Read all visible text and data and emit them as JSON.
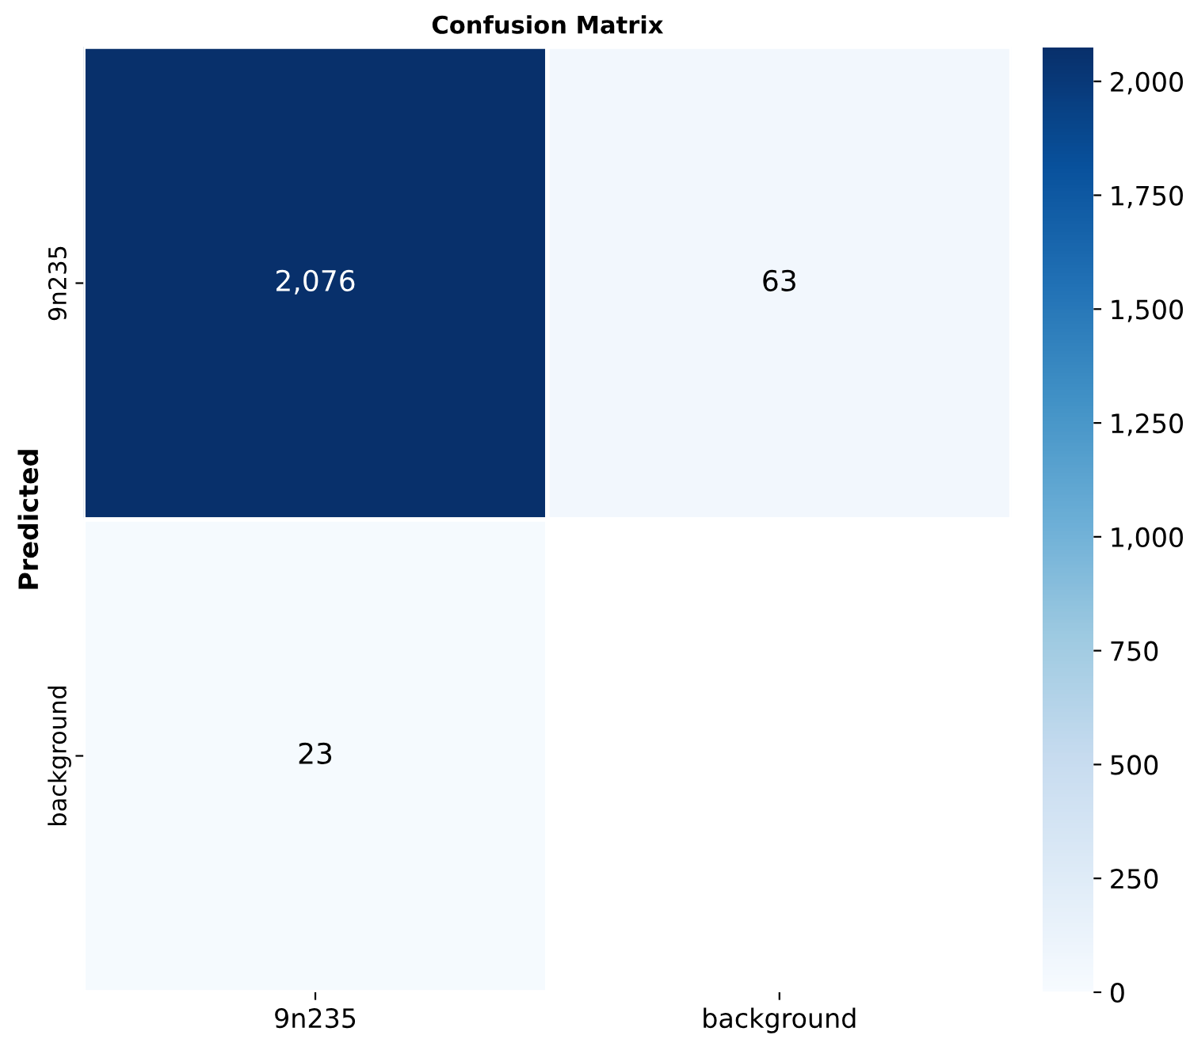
{
  "chart_data": {
    "type": "heatmap",
    "title": "Confusion Matrix",
    "ylabel": "Predicted",
    "categories": [
      "9n235",
      "background"
    ],
    "y_categories": [
      "9n235",
      "background"
    ],
    "cells": [
      [
        2076,
        63
      ],
      [
        23,
        null
      ]
    ],
    "cell_labels": [
      [
        "2,076",
        "63"
      ],
      [
        "23",
        null
      ]
    ],
    "clim": [
      0,
      2076
    ],
    "cticks": [
      0,
      250,
      500,
      750,
      {
        "value": 1000,
        "label": "1,000"
      },
      {
        "value": 1250,
        "label": "1,250"
      },
      {
        "value": 1500,
        "label": "1,500"
      },
      {
        "value": 1750,
        "label": "1,750"
      },
      {
        "value": 2000,
        "label": "2,000"
      }
    ]
  }
}
